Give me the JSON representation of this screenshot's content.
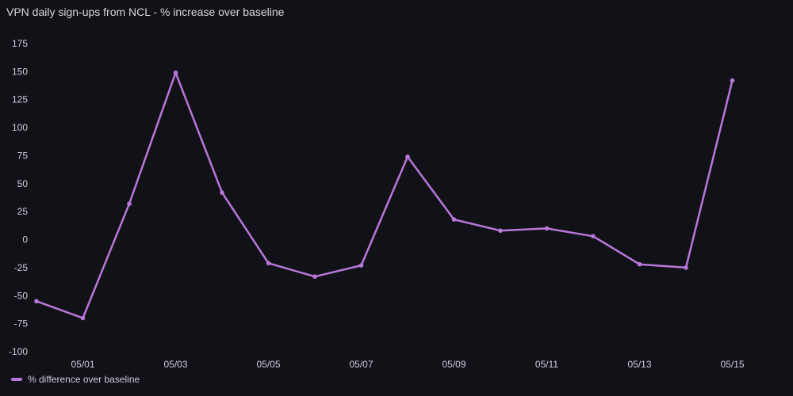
{
  "panel": {
    "title": "VPN daily sign-ups from NCL - % increase over baseline"
  },
  "colors": {
    "background": "#111217",
    "series": "#b877d9",
    "text": "#ccccdc"
  },
  "chart_data": {
    "type": "line",
    "title": "VPN daily sign-ups from NCL - % increase over baseline",
    "xlabel": "",
    "ylabel": "",
    "x": [
      "04/30",
      "05/01",
      "05/02",
      "05/03",
      "05/04",
      "05/05",
      "05/06",
      "05/07",
      "05/08",
      "05/09",
      "05/10",
      "05/11",
      "05/12",
      "05/13",
      "05/14",
      "05/15"
    ],
    "x_tick_labels": [
      "05/01",
      "05/03",
      "05/05",
      "05/07",
      "05/09",
      "05/11",
      "05/13",
      "05/15"
    ],
    "y_ticks": [
      -100,
      -75,
      -50,
      -25,
      0,
      25,
      50,
      75,
      100,
      125,
      150,
      175
    ],
    "ylim": [
      -100,
      175
    ],
    "grid": false,
    "legend_position": "bottom-left",
    "series": [
      {
        "name": "% difference over baseline",
        "values": [
          -55,
          -70,
          32,
          149,
          42,
          -21,
          -33,
          -23,
          74,
          18,
          8,
          10,
          3,
          -22,
          -25,
          142
        ]
      }
    ]
  }
}
